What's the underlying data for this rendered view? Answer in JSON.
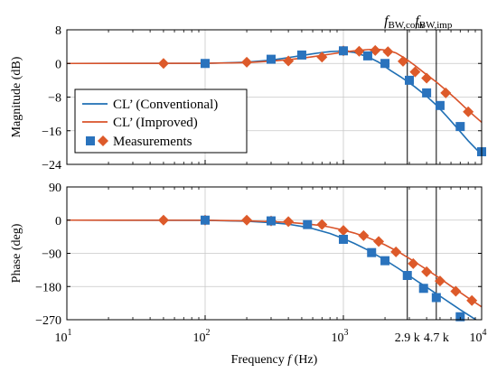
{
  "colors": {
    "conventional": "#1f6fb4",
    "improved": "#d9532a",
    "grid": "#c8c8c8",
    "axis": "#000000",
    "marker_conventional": "#2a73bd",
    "marker_improved": "#dd5a2a"
  },
  "chart_data": [
    {
      "type": "line",
      "panel": "magnitude",
      "ylabel": "Magnitude (dB)",
      "xscale": "log",
      "xlim": [
        10,
        10000
      ],
      "ylim": [
        -24,
        8
      ],
      "yticks": [
        8,
        0,
        -8,
        -16,
        -24
      ],
      "ytick_labels": [
        "8",
        "0",
        "−8",
        "−16",
        "−24"
      ],
      "grid": true,
      "legend": {
        "placement": "left-center",
        "entries": [
          "CL’ (Conventional)",
          "CL’ (Improved)",
          "Measurements"
        ]
      },
      "series": [
        {
          "name": "CL’ (Conventional)",
          "x": [
            10,
            100,
            200,
            300,
            400,
            500,
            600,
            700,
            800,
            900,
            1000,
            1200,
            1500,
            1800,
            2200,
            2600,
            2900,
            3300,
            4000,
            4700,
            5500,
            6500,
            8000,
            10000
          ],
          "y": [
            0,
            0.02,
            0.3,
            0.8,
            1.4,
            1.9,
            2.3,
            2.6,
            2.8,
            2.9,
            2.9,
            2.6,
            1.6,
            0.3,
            -1.7,
            -3.2,
            -4.3,
            -5.6,
            -7.8,
            -9.9,
            -12.3,
            -15.0,
            -18.4,
            -21.7
          ]
        },
        {
          "name": "CL’ (Improved)",
          "x": [
            10,
            100,
            200,
            300,
            400,
            500,
            600,
            800,
            1000,
            1200,
            1500,
            1800,
            2100,
            2400,
            2800,
            3300,
            3900,
            4700,
            5500,
            6500,
            8000,
            10000
          ],
          "y": [
            0,
            0.03,
            0.2,
            0.55,
            0.9,
            1.25,
            1.6,
            2.2,
            2.7,
            3.0,
            3.3,
            3.35,
            3.1,
            2.5,
            1.2,
            -0.5,
            -2.4,
            -4.4,
            -6.3,
            -8.4,
            -11.2,
            -14.0
          ]
        },
        {
          "name": "Measurements (Conventional)",
          "marker": "square",
          "x": [
            100,
            300,
            500,
            1000,
            1500,
            2000,
            3000,
            4000,
            5000,
            7000,
            10000
          ],
          "y": [
            0,
            1.0,
            2.0,
            3.0,
            1.8,
            0,
            -4,
            -7,
            -10,
            -15,
            -21
          ]
        },
        {
          "name": "Measurements (Improved)",
          "marker": "diamond",
          "x": [
            50,
            200,
            400,
            700,
            1000,
            1300,
            1700,
            2100,
            2700,
            3300,
            4000,
            5500,
            8000
          ],
          "y": [
            0,
            0.3,
            0.6,
            1.5,
            3.0,
            2.9,
            3.1,
            2.8,
            0.5,
            -2.0,
            -3.5,
            -7.0,
            -11.5
          ]
        }
      ],
      "annotations": [
        {
          "x": 2900,
          "label_main": "f",
          "label_sub": "BW,conv"
        },
        {
          "x": 4700,
          "label_main": "f",
          "label_sub": "BW,imp"
        }
      ]
    },
    {
      "type": "line",
      "panel": "phase",
      "ylabel": "Phase (deg)",
      "xlabel": "Frequency ",
      "xlabel_italic": "f",
      "xlabel_unit": " (Hz)",
      "xscale": "log",
      "xlim": [
        10,
        10000
      ],
      "ylim": [
        -270,
        90
      ],
      "yticks": [
        90,
        0,
        -90,
        -180,
        -270
      ],
      "ytick_labels": [
        "90",
        "0",
        "−90",
        "−180",
        "−270"
      ],
      "xtick_base": "10",
      "xticks": [
        {
          "x": 10,
          "exp": "1"
        },
        {
          "x": 100,
          "exp": "2"
        },
        {
          "x": 1000,
          "exp": "3"
        },
        {
          "x": 10000,
          "exp": "4"
        }
      ],
      "extra_xtick_labels": [
        {
          "x": 2900,
          "label": "2.9 k"
        },
        {
          "x": 4700,
          "label": "4.7 k"
        }
      ],
      "grid": true,
      "series": [
        {
          "name": "CL’ (Conventional)",
          "x": [
            10,
            100,
            200,
            300,
            400,
            500,
            600,
            800,
            1000,
            1200,
            1500,
            2000,
            2500,
            3000,
            3500,
            4000,
            5000,
            6000,
            7000,
            8500,
            10000
          ],
          "y": [
            0,
            -0.5,
            -3,
            -7,
            -11,
            -17,
            -23,
            -36,
            -50,
            -63,
            -81,
            -108,
            -131,
            -151,
            -168,
            -182,
            -206,
            -226,
            -243,
            -263,
            -280
          ]
        },
        {
          "name": "CL’ (Improved)",
          "x": [
            10,
            100,
            200,
            300,
            400,
            500,
            600,
            700,
            800,
            1000,
            1200,
            1500,
            2000,
            2500,
            3000,
            3500,
            4000,
            5000,
            6000,
            7000,
            8000,
            10000
          ],
          "y": [
            0,
            -0.3,
            -2,
            -4,
            -6,
            -9,
            -12,
            -15,
            -19,
            -27,
            -35,
            -47,
            -67,
            -86,
            -104,
            -120,
            -134,
            -158,
            -179,
            -196,
            -211,
            -235
          ]
        },
        {
          "name": "Measurements (Conventional)",
          "marker": "square",
          "x": [
            100,
            300,
            550,
            1000,
            1600,
            2000,
            2900,
            3800,
            4700,
            7000
          ],
          "y": [
            0,
            -2,
            -12,
            -52,
            -88,
            -110,
            -150,
            -185,
            -210,
            -262
          ]
        },
        {
          "name": "Measurements (Improved)",
          "marker": "diamond",
          "x": [
            50,
            100,
            200,
            300,
            400,
            700,
            1000,
            1400,
            1800,
            2400,
            3200,
            4000,
            5000,
            6500,
            8500
          ],
          "y": [
            0,
            0,
            0,
            -2,
            -4,
            -12,
            -28,
            -42,
            -58,
            -86,
            -118,
            -140,
            -165,
            -193,
            -218
          ]
        }
      ]
    }
  ]
}
